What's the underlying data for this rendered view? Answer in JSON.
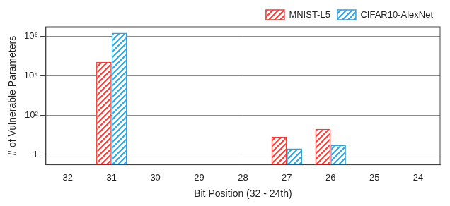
{
  "chart_data": {
    "type": "bar",
    "x_label": "Bit Position (32 - 24th)",
    "y_label": "# of Vulnerable Parameters",
    "categories": [
      "32",
      "31",
      "30",
      "29",
      "28",
      "27",
      "26",
      "25",
      "24"
    ],
    "series": [
      {
        "name": "MNIST-L5",
        "color": "#e8403a",
        "values": [
          null,
          50000,
          null,
          null,
          null,
          8,
          20,
          null,
          null
        ]
      },
      {
        "name": "CIFAR10-AlexNet",
        "color": "#3a9fd6",
        "values": [
          null,
          1500000,
          null,
          null,
          null,
          2,
          3,
          null,
          null
        ]
      }
    ],
    "log": "y",
    "ylim": [
      0.3,
      3000000
    ],
    "yticks": [
      1,
      {
        "value": 100,
        "label": "10²"
      },
      {
        "value": 10000,
        "label": "10⁴"
      },
      {
        "value": 1000000,
        "label": "10⁶"
      }
    ],
    "grid": true,
    "legend": "top-right"
  }
}
